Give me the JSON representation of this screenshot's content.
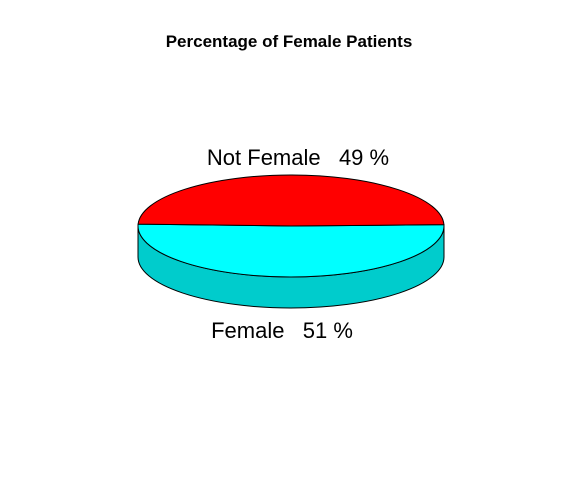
{
  "chart_data": {
    "type": "pie",
    "style": "3d",
    "title": "Percentage of Female Patients",
    "categories": [
      "Female",
      "Not Female"
    ],
    "values": [
      51,
      49
    ],
    "labels": [
      "Female   51 %",
      "Not Female   49 %"
    ],
    "colors": [
      "#00ffff",
      "#ff0000"
    ],
    "side_colors": [
      "#00cccc",
      "#cc0000"
    ],
    "legend": "none"
  }
}
